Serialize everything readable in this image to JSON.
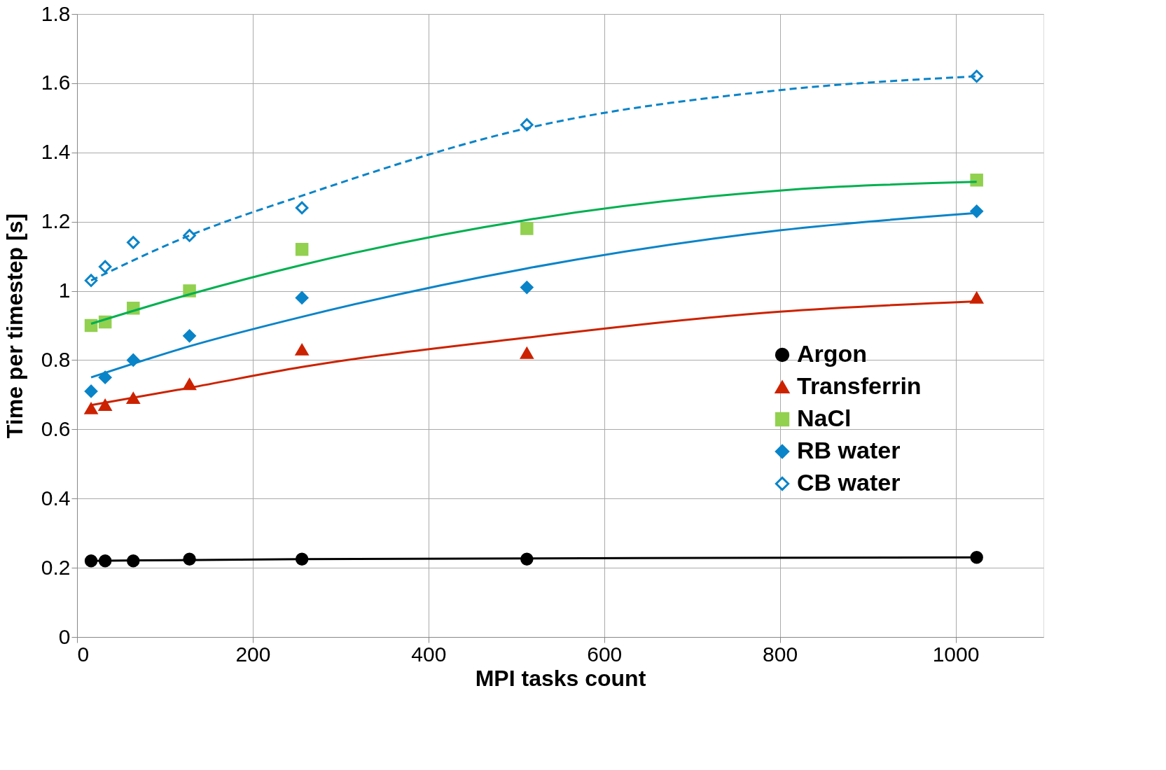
{
  "chart_data": {
    "type": "scatter",
    "xlabel": "MPI tasks count",
    "ylabel": "Time per timestep [s]",
    "xlim": [
      0,
      1100
    ],
    "xticks": [
      0,
      200,
      400,
      600,
      800,
      1000
    ],
    "ylim": [
      0,
      1.8
    ],
    "yticks": [
      0,
      0.2,
      0.4,
      0.6,
      0.8,
      1,
      1.2,
      1.4,
      1.6,
      1.8
    ],
    "grid": true,
    "legend": "right",
    "x": [
      16,
      32,
      64,
      128,
      256,
      512,
      1024
    ],
    "series": [
      {
        "name": "Argon",
        "color": "#000000",
        "marker": "circle",
        "values": [
          0.22,
          0.22,
          0.22,
          0.225,
          0.225,
          0.225,
          0.23
        ]
      },
      {
        "name": "Transferrin",
        "color": "#cc2200",
        "marker": "triangle",
        "values": [
          0.66,
          0.67,
          0.69,
          0.73,
          0.83,
          0.82,
          0.98
        ]
      },
      {
        "name": "NaCl",
        "color": "#92d050",
        "marker": "square",
        "values": [
          0.9,
          0.91,
          0.95,
          1.0,
          1.12,
          1.18,
          1.32
        ]
      },
      {
        "name": "RB water",
        "color": "#0a84c8",
        "marker": "diamond",
        "values": [
          0.71,
          0.75,
          0.8,
          0.87,
          0.98,
          1.01,
          1.23
        ]
      },
      {
        "name": "CB water",
        "color": "#0a84c8",
        "marker": "diamond-open",
        "values": [
          1.03,
          1.07,
          1.14,
          1.16,
          1.24,
          1.48,
          1.62
        ]
      },
      {
        "type": "line",
        "color": "#000000",
        "line_style": "solid",
        "x": [
          16,
          256,
          512,
          1024
        ],
        "values": [
          0.22,
          0.225,
          0.227,
          0.23
        ]
      },
      {
        "type": "line",
        "color": "#cc2200",
        "line_style": "solid",
        "x": [
          16,
          128,
          256,
          512,
          800,
          1024
        ],
        "values": [
          0.67,
          0.72,
          0.78,
          0.865,
          0.94,
          0.97
        ]
      },
      {
        "type": "line",
        "color": "#00b050",
        "line_style": "solid",
        "x": [
          16,
          128,
          256,
          512,
          800,
          1024
        ],
        "values": [
          0.905,
          0.99,
          1.075,
          1.205,
          1.29,
          1.315
        ]
      },
      {
        "type": "line",
        "color": "#0a84c8",
        "line_style": "solid",
        "x": [
          16,
          128,
          256,
          512,
          800,
          1024
        ],
        "values": [
          0.75,
          0.84,
          0.925,
          1.065,
          1.175,
          1.225
        ]
      },
      {
        "type": "line",
        "color": "#0a84c8",
        "line_style": "dashed",
        "x": [
          16,
          128,
          256,
          512,
          800,
          1024
        ],
        "values": [
          1.03,
          1.16,
          1.275,
          1.47,
          1.58,
          1.62
        ]
      }
    ]
  }
}
